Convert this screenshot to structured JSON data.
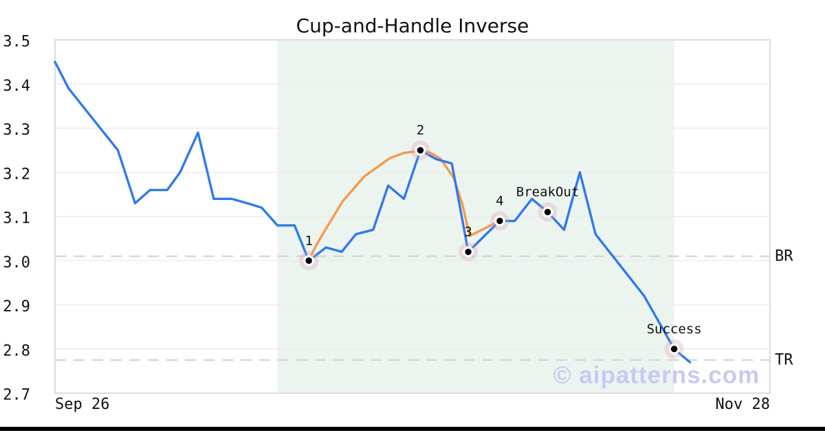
{
  "page": {
    "background": "#ffffff",
    "bottom_bar_color": "#000000"
  },
  "chart_data": {
    "type": "line",
    "title": "Cup-and-Handle Inverse",
    "watermark": "© aipatterns.com",
    "x_unit": "fraction of x-axis between first and last date",
    "x_ticks": [
      "Sep 26",
      "Nov 28"
    ],
    "y_ticks": [
      "3.5",
      "3.4",
      "3.3",
      "3.2",
      "3.1",
      "3.0",
      "2.9",
      "2.8",
      "2.7"
    ],
    "ylim": [
      2.7,
      3.5
    ],
    "grid": "horizontal",
    "legend": "none",
    "pattern_region": {
      "x_start": 0.311,
      "x_end": 0.866
    },
    "reference_lines": [
      {
        "label": "BR",
        "value": 3.01
      },
      {
        "label": "TR",
        "value": 2.775
      }
    ],
    "series": [
      {
        "name": "price",
        "points": [
          [
            0.0,
            3.45
          ],
          [
            0.019,
            3.39
          ],
          [
            0.088,
            3.25
          ],
          [
            0.112,
            3.13
          ],
          [
            0.133,
            3.16
          ],
          [
            0.157,
            3.16
          ],
          [
            0.175,
            3.2
          ],
          [
            0.2,
            3.29
          ],
          [
            0.222,
            3.14
          ],
          [
            0.247,
            3.14
          ],
          [
            0.269,
            3.13
          ],
          [
            0.289,
            3.12
          ],
          [
            0.311,
            3.08
          ],
          [
            0.335,
            3.08
          ],
          [
            0.355,
            3.0
          ],
          [
            0.379,
            3.03
          ],
          [
            0.401,
            3.02
          ],
          [
            0.421,
            3.06
          ],
          [
            0.445,
            3.07
          ],
          [
            0.466,
            3.17
          ],
          [
            0.488,
            3.14
          ],
          [
            0.511,
            3.25
          ],
          [
            0.533,
            3.23
          ],
          [
            0.555,
            3.22
          ],
          [
            0.578,
            3.02
          ],
          [
            0.622,
            3.09
          ],
          [
            0.643,
            3.09
          ],
          [
            0.667,
            3.14
          ],
          [
            0.689,
            3.11
          ],
          [
            0.712,
            3.07
          ],
          [
            0.734,
            3.2
          ],
          [
            0.756,
            3.06
          ],
          [
            0.824,
            2.92
          ],
          [
            0.866,
            2.8
          ],
          [
            0.888,
            2.77
          ]
        ]
      },
      {
        "name": "pattern-overlay",
        "points": [
          [
            0.355,
            3.002
          ],
          [
            0.365,
            3.034
          ],
          [
            0.377,
            3.067
          ],
          [
            0.402,
            3.134
          ],
          [
            0.432,
            3.19
          ],
          [
            0.468,
            3.232
          ],
          [
            0.488,
            3.244
          ],
          [
            0.511,
            3.249
          ],
          [
            0.524,
            3.245
          ],
          [
            0.539,
            3.231
          ],
          [
            0.558,
            3.187
          ],
          [
            0.57,
            3.126
          ],
          [
            0.576,
            3.084
          ],
          [
            0.58,
            3.056
          ],
          [
            0.622,
            3.09
          ]
        ]
      }
    ],
    "annotations": [
      {
        "label": "1",
        "x": 0.355,
        "value": 3.0
      },
      {
        "label": "2",
        "x": 0.511,
        "value": 3.25
      },
      {
        "label": "3",
        "x": 0.578,
        "value": 3.02
      },
      {
        "label": "4",
        "x": 0.622,
        "value": 3.09
      },
      {
        "label": "BreakOut",
        "x": 0.689,
        "value": 3.11
      },
      {
        "label": "Success",
        "x": 0.866,
        "value": 2.8
      }
    ]
  },
  "colors": {
    "price_line": "#3179ea",
    "pattern_line": "#f5994d",
    "region_fill": "#ecf4ef",
    "grid": "#ececec",
    "frame": "#dcdcdc",
    "dashed_ref": "#d6d6d6",
    "text": "#111111",
    "marker_halo": "rgba(221,163,177,0.32)",
    "marker_ring": "#ffffff",
    "marker_dot": "#000000",
    "watermark": "#c7caf2"
  }
}
